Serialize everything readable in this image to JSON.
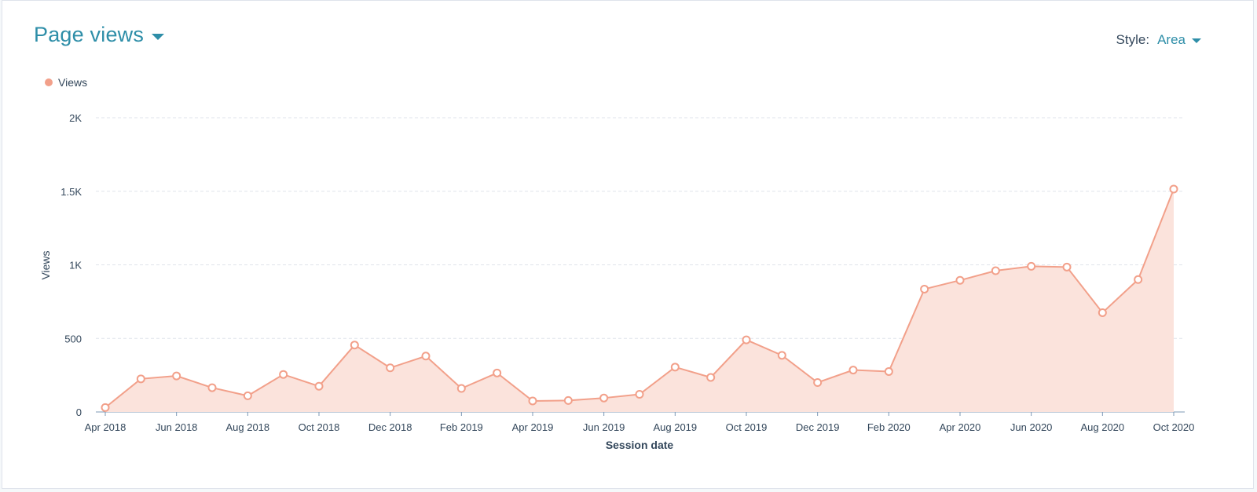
{
  "header": {
    "title": "Page views",
    "style_label": "Style:",
    "style_value": "Area"
  },
  "colors": {
    "accent": "#2e8ea8",
    "series": "#f2a08a",
    "fill": "#fbe3dc",
    "grid": "#dfe3eb",
    "text": "#33475b"
  },
  "chart_data": {
    "type": "area",
    "title": "Page views",
    "xlabel": "Session date",
    "ylabel": "Views",
    "ylim": [
      0,
      2000
    ],
    "yticks": [
      0,
      500,
      1000,
      1500,
      2000
    ],
    "ytick_labels": [
      "0",
      "500",
      "1K",
      "1.5K",
      "2K"
    ],
    "grid": true,
    "legend": "top-left",
    "x_tick_labels": [
      "Apr 2018",
      "Jun 2018",
      "Aug 2018",
      "Oct 2018",
      "Dec 2018",
      "Feb 2019",
      "Apr 2019",
      "Jun 2019",
      "Aug 2019",
      "Oct 2019",
      "Dec 2019",
      "Feb 2020",
      "Apr 2020",
      "Jun 2020",
      "Aug 2020",
      "Oct 2020"
    ],
    "x": [
      "2018-04",
      "2018-05",
      "2018-06",
      "2018-07",
      "2018-08",
      "2018-09",
      "2018-10",
      "2018-11",
      "2018-12",
      "2019-01",
      "2019-02",
      "2019-03",
      "2019-04",
      "2019-05",
      "2019-06",
      "2019-07",
      "2019-08",
      "2019-09",
      "2019-10",
      "2019-11",
      "2019-12",
      "2020-01",
      "2020-02",
      "2020-03",
      "2020-04",
      "2020-05",
      "2020-06",
      "2020-07",
      "2020-08",
      "2020-09",
      "2020-10"
    ],
    "series": [
      {
        "name": "Views",
        "values": [
          30,
          225,
          245,
          165,
          110,
          255,
          175,
          455,
          300,
          380,
          160,
          265,
          75,
          78,
          95,
          120,
          305,
          235,
          490,
          385,
          200,
          285,
          275,
          835,
          895,
          960,
          990,
          985,
          675,
          900,
          1515
        ]
      }
    ]
  }
}
